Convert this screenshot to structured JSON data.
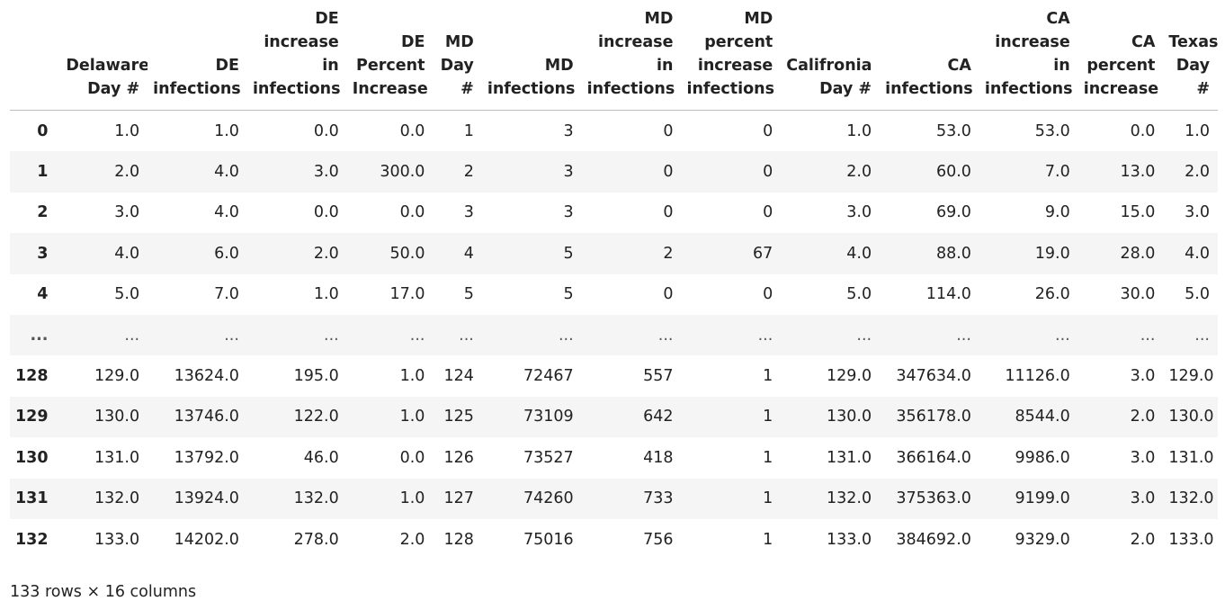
{
  "table": {
    "index_header": "",
    "columns": [
      "Delaware Day #",
      "DE infections",
      "DE increase in infections",
      "DE Percent Increase",
      "MD Day #",
      "MD infections",
      "MD increase in infections",
      "MD percent increase infections",
      "Califronia Day #",
      "CA infections",
      "CA increase in infections",
      "CA percent increase",
      "Texas Day #"
    ],
    "rows": [
      {
        "index": "0",
        "cells": [
          "1.0",
          "1.0",
          "0.0",
          "0.0",
          "1",
          "3",
          "0",
          "0",
          "1.0",
          "53.0",
          "53.0",
          "0.0",
          "1.0"
        ]
      },
      {
        "index": "1",
        "cells": [
          "2.0",
          "4.0",
          "3.0",
          "300.0",
          "2",
          "3",
          "0",
          "0",
          "2.0",
          "60.0",
          "7.0",
          "13.0",
          "2.0"
        ]
      },
      {
        "index": "2",
        "cells": [
          "3.0",
          "4.0",
          "0.0",
          "0.0",
          "3",
          "3",
          "0",
          "0",
          "3.0",
          "69.0",
          "9.0",
          "15.0",
          "3.0"
        ]
      },
      {
        "index": "3",
        "cells": [
          "4.0",
          "6.0",
          "2.0",
          "50.0",
          "4",
          "5",
          "2",
          "67",
          "4.0",
          "88.0",
          "19.0",
          "28.0",
          "4.0"
        ]
      },
      {
        "index": "4",
        "cells": [
          "5.0",
          "7.0",
          "1.0",
          "17.0",
          "5",
          "5",
          "0",
          "0",
          "5.0",
          "114.0",
          "26.0",
          "30.0",
          "5.0"
        ]
      },
      {
        "index": "...",
        "cells": [
          "...",
          "...",
          "...",
          "...",
          "...",
          "...",
          "...",
          "...",
          "...",
          "...",
          "...",
          "...",
          "..."
        ]
      },
      {
        "index": "128",
        "cells": [
          "129.0",
          "13624.0",
          "195.0",
          "1.0",
          "124",
          "72467",
          "557",
          "1",
          "129.0",
          "347634.0",
          "11126.0",
          "3.0",
          "129.0"
        ]
      },
      {
        "index": "129",
        "cells": [
          "130.0",
          "13746.0",
          "122.0",
          "1.0",
          "125",
          "73109",
          "642",
          "1",
          "130.0",
          "356178.0",
          "8544.0",
          "2.0",
          "130.0"
        ]
      },
      {
        "index": "130",
        "cells": [
          "131.0",
          "13792.0",
          "46.0",
          "0.0",
          "126",
          "73527",
          "418",
          "1",
          "131.0",
          "366164.0",
          "9986.0",
          "3.0",
          "131.0"
        ]
      },
      {
        "index": "131",
        "cells": [
          "132.0",
          "13924.0",
          "132.0",
          "1.0",
          "127",
          "74260",
          "733",
          "1",
          "132.0",
          "375363.0",
          "9199.0",
          "3.0",
          "132.0"
        ]
      },
      {
        "index": "132",
        "cells": [
          "133.0",
          "14202.0",
          "278.0",
          "2.0",
          "128",
          "75016",
          "756",
          "1",
          "133.0",
          "384692.0",
          "9329.0",
          "2.0",
          "133.0"
        ]
      }
    ]
  },
  "footer": {
    "shape_text": "133 rows × 16 columns"
  }
}
